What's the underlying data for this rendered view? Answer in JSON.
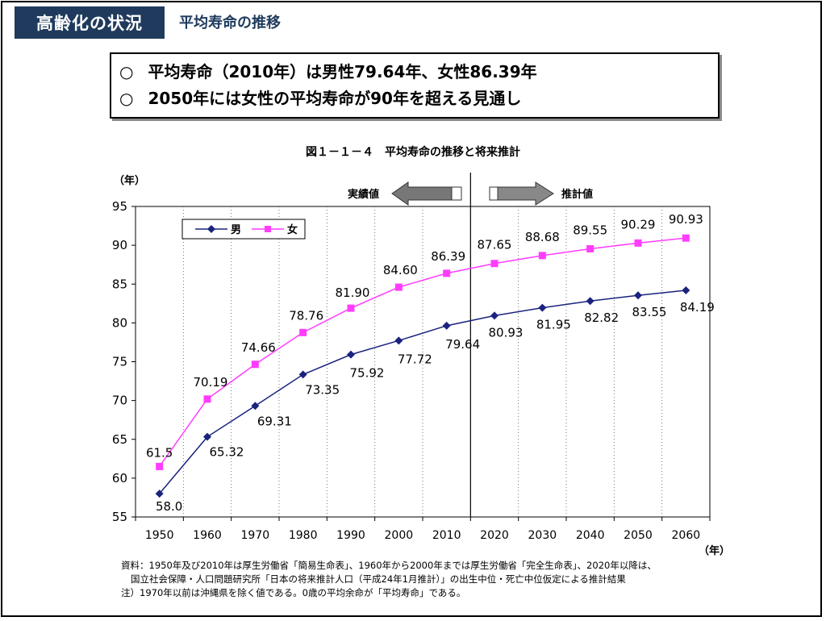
{
  "header": {
    "title": "高齢化の状況",
    "subtitle": "平均寿命の推移"
  },
  "summary": {
    "bullet": "○",
    "lines": [
      "平均寿命（2010年）は男性79.64年、女性86.39年",
      "2050年には女性の平均寿命が90年を超える見通し"
    ]
  },
  "chart_data": {
    "type": "line",
    "title": "図１－１－４　平均寿命の推移と将来推計",
    "ylabel": "（年）",
    "xlabel": "（年）",
    "ylim": [
      55,
      95
    ],
    "yticks": [
      55,
      60,
      65,
      70,
      75,
      80,
      85,
      90,
      95
    ],
    "x": [
      1950,
      1960,
      1970,
      1980,
      1990,
      2000,
      2010,
      2020,
      2030,
      2040,
      2050,
      2060
    ],
    "x_tick_labels": [
      "1950",
      "1960",
      "1970",
      "1980",
      "1990",
      "2000",
      "2010",
      "2020",
      "2030",
      "2040",
      "2050",
      "2060"
    ],
    "divider_between": [
      2010,
      2020
    ],
    "region_labels": {
      "actual": "実績値",
      "projection": "推計値"
    },
    "series": [
      {
        "name": "男",
        "color": "#1a237e",
        "marker": "diamond",
        "values": [
          58.0,
          65.32,
          69.31,
          73.35,
          75.92,
          77.72,
          79.64,
          80.93,
          81.95,
          82.82,
          83.55,
          84.19
        ],
        "labels": [
          "58.0",
          "65.32",
          "69.31",
          "73.35",
          "75.92",
          "77.72",
          "79.64",
          "80.93",
          "81.95",
          "82.82",
          "83.55",
          "84.19"
        ]
      },
      {
        "name": "女",
        "color": "#ff3cff",
        "marker": "square",
        "values": [
          61.5,
          70.19,
          74.66,
          78.76,
          81.9,
          84.6,
          86.39,
          87.65,
          88.68,
          89.55,
          90.29,
          90.93
        ],
        "labels": [
          "61.5",
          "70.19",
          "74.66",
          "78.76",
          "81.90",
          "84.60",
          "86.39",
          "87.65",
          "88.68",
          "89.55",
          "90.29",
          "90.93"
        ]
      }
    ],
    "grid": {
      "vertical": true,
      "style": "dotted"
    },
    "legend": "top-left"
  },
  "notes": [
    "資料：1950年及び2010年は厚生労働省「簡易生命表」、1960年から2000年までは厚生労働省「完全生命表」、2020年以降は、",
    "国立社会保障・人口問題研究所「日本の将来推計人口（平成24年1月推計）」の出生中位・死亡中位仮定による推計結果",
    "注）1970年以前は沖縄県を除く値である。0歳の平均余命が「平均寿命」である。"
  ]
}
